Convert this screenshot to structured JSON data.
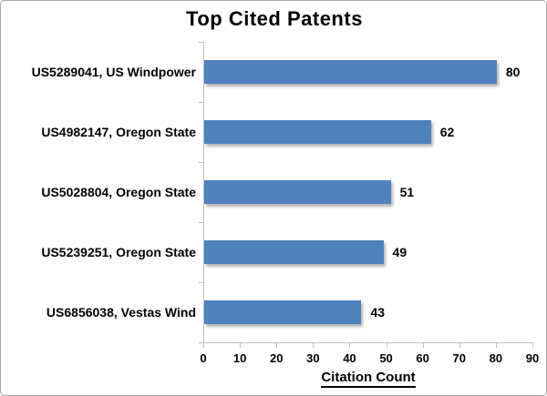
{
  "title": "Top Cited Patents",
  "chart_data": {
    "type": "bar",
    "orientation": "horizontal",
    "title": "Top Cited Patents",
    "xlabel": "Citation Count",
    "ylabel": "",
    "categories": [
      "US5289041, US Windpower",
      "US4982147, Oregon State",
      "US5028804, Oregon State",
      "US5239251, Oregon State",
      "US6856038, Vestas Wind"
    ],
    "values": [
      80,
      62,
      51,
      49,
      43
    ],
    "data_labels": [
      80,
      62,
      51,
      49,
      43
    ],
    "xlim": [
      0,
      90
    ],
    "xticks": [
      0,
      10,
      20,
      30,
      40,
      50,
      60,
      70,
      80,
      90
    ],
    "grid": false,
    "legend": false,
    "colors": {
      "bar": "#4f81bd",
      "axis": "#c0c0c0",
      "text": "#000000",
      "frame_border": "#a6a6a6",
      "background": "#ffffff"
    }
  }
}
